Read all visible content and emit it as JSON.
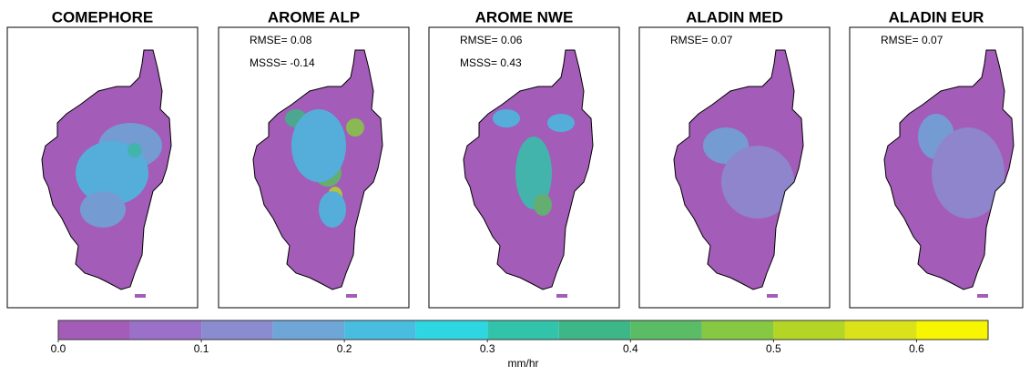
{
  "panels": [
    {
      "title": "COMEPHORE",
      "stats": []
    },
    {
      "title": "AROME ALP",
      "stats": [
        "RMSE= 0.08",
        "MSSS= -0.14"
      ]
    },
    {
      "title": "AROME NWE",
      "stats": [
        "RMSE= 0.06",
        "MSSS= 0.43"
      ]
    },
    {
      "title": "ALADIN MED",
      "stats": [
        "RMSE= 0.07"
      ]
    },
    {
      "title": "ALADIN EUR",
      "stats": [
        "RMSE= 0.07"
      ]
    }
  ],
  "colorbar": {
    "label": "mm/hr",
    "lim": [
      0,
      0.65
    ],
    "bounds": [
      0,
      0.05,
      0.1,
      0.15,
      0.2,
      0.25,
      0.3,
      0.35,
      0.4,
      0.45,
      0.5,
      0.55,
      0.6,
      0.65
    ],
    "colors": [
      "#a35cb8",
      "#9a70c8",
      "#8b8cd0",
      "#6ea6d8",
      "#48bde0",
      "#2ed6e2",
      "#32c4aa",
      "#3db688",
      "#5abc64",
      "#86c842",
      "#b5d526",
      "#dce21a",
      "#f7f500"
    ],
    "ticks": [
      {
        "value": 0,
        "label": "0.0"
      },
      0.1,
      0.2,
      0.3,
      0.4,
      0.5,
      0.6
    ]
  }
}
